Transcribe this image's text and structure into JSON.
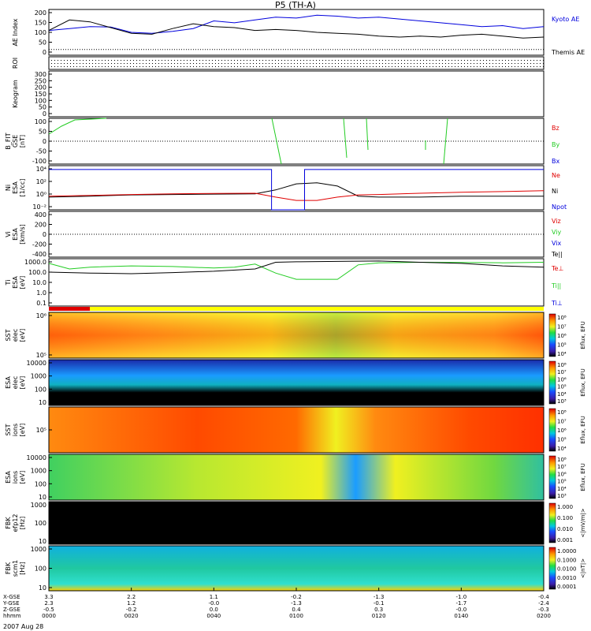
{
  "title": "P5 (TH-A)",
  "date_label": "2007 Aug 28",
  "colors": {
    "red": "#e00000",
    "green": "#22cc22",
    "blue": "#0000dd",
    "black": "#000000",
    "yellow": "#ffff00"
  },
  "panels": [
    {
      "id": "ae",
      "ylabel": [
        "AE Index"
      ],
      "yticks": [
        "200",
        "150",
        "100",
        "50",
        "0"
      ],
      "legend": [
        {
          "text": "Kyoto AE",
          "color": "#0000dd"
        },
        {
          "text": "Themis AE",
          "color": "#000000"
        }
      ]
    },
    {
      "id": "roi",
      "ylabel": [
        "ROI"
      ],
      "yticks": []
    },
    {
      "id": "keogram",
      "ylabel": [
        "Keogram"
      ],
      "yticks": [
        "300",
        "250",
        "200",
        "150",
        "100",
        "50",
        "0"
      ]
    },
    {
      "id": "bfit",
      "ylabel": [
        "B_FIT",
        "GSE",
        "[nT]"
      ],
      "yticks": [
        "100",
        "50",
        "0",
        "-50",
        "-100"
      ],
      "legend": [
        {
          "text": "Bz",
          "color": "#e00000"
        },
        {
          "text": "By",
          "color": "#22cc22"
        },
        {
          "text": "Bx",
          "color": "#0000dd"
        }
      ]
    },
    {
      "id": "ni",
      "ylabel": [
        "Ni",
        "ESA",
        "[1/cc]"
      ],
      "yticks": [
        "10⁴",
        "10²",
        "10⁰",
        "10⁻²"
      ],
      "legend": [
        {
          "text": "Ne",
          "color": "#e00000"
        },
        {
          "text": "Ni",
          "color": "#000000"
        },
        {
          "text": "Npot",
          "color": "#0000dd"
        }
      ]
    },
    {
      "id": "vi",
      "ylabel": [
        "Vi",
        "ESA",
        "[km/s]"
      ],
      "yticks": [
        "400",
        "200",
        "0",
        "-200",
        "-400"
      ],
      "legend": [
        {
          "text": "Viz",
          "color": "#e00000"
        },
        {
          "text": "Viy",
          "color": "#22cc22"
        },
        {
          "text": "Vix",
          "color": "#0000dd"
        },
        {
          "text": "Te||",
          "color": "#000000"
        }
      ]
    },
    {
      "id": "ti",
      "ylabel": [
        "Ti",
        "ESA",
        "[eV]"
      ],
      "yticks": [
        "1000.0",
        "100.0",
        "10.0",
        "1.0",
        "0.1"
      ],
      "legend": [
        {
          "text": "Te⊥",
          "color": "#e00000"
        },
        {
          "text": "Ti||",
          "color": "#22cc22"
        },
        {
          "text": "Ti⊥",
          "color": "#0000dd"
        }
      ]
    },
    {
      "id": "sst_e",
      "ylabel": [
        "SST",
        "elec",
        "[eV]"
      ],
      "yticks": [
        "10⁶",
        "10⁵"
      ],
      "cbar": [
        "10⁸",
        "10⁷",
        "10⁶",
        "10⁵",
        "10⁴"
      ],
      "cbar_label": "Eflux, EFU"
    },
    {
      "id": "esa_e",
      "ylabel": [
        "ESA",
        "elec",
        "[eV]"
      ],
      "yticks": [
        "10000",
        "1000",
        "100",
        "10"
      ],
      "cbar": [
        "10⁸",
        "10⁷",
        "10⁶",
        "10⁵",
        "10⁴",
        "10³"
      ],
      "cbar_label": "Eflux, EFU"
    },
    {
      "id": "sst_i",
      "ylabel": [
        "SST",
        "ions",
        "[eV]"
      ],
      "yticks": [
        "10⁵"
      ],
      "cbar": [
        "10⁸",
        "10⁷",
        "10⁶",
        "10⁵",
        "10⁴"
      ],
      "cbar_label": "Eflux, EFU"
    },
    {
      "id": "esa_i",
      "ylabel": [
        "ESA",
        "ions",
        "[eV]"
      ],
      "yticks": [
        "10000",
        "1000",
        "100",
        "10"
      ],
      "cbar": [
        "10⁸",
        "10⁷",
        "10⁶",
        "10⁵",
        "10⁴",
        "10³"
      ],
      "cbar_label": "Eflux, EFU"
    },
    {
      "id": "fbk1",
      "ylabel": [
        "FBK",
        "efp12",
        "[Hz]"
      ],
      "yticks": [
        "1000",
        "100",
        "10"
      ],
      "cbar": [
        "1.000",
        "0.100",
        "0.010",
        "0.001"
      ],
      "cbar_label": "<|mV/m|>"
    },
    {
      "id": "fbk2",
      "ylabel": [
        "FBK",
        "scm1",
        "[Hz]"
      ],
      "yticks": [
        "1000",
        "100",
        "10"
      ],
      "cbar": [
        "1.0000",
        "0.1000",
        "0.0100",
        "0.0010",
        "0.0001"
      ],
      "cbar_label": "<|nT|>"
    }
  ],
  "axis_rows": {
    "labels": [
      "X-GSE",
      "Y-GSE",
      "Z-GSE",
      "hhmm"
    ],
    "columns": [
      {
        "vals": [
          "3.3",
          "2.3",
          "-0.5",
          "0000"
        ]
      },
      {
        "vals": [
          "2.2",
          "1.2",
          "-0.2",
          "0020"
        ]
      },
      {
        "vals": [
          "1.1",
          "-0.0",
          "0.0",
          "0040"
        ]
      },
      {
        "vals": [
          "-0.2",
          "-1.3",
          "0.4",
          "0100"
        ]
      },
      {
        "vals": [
          "-1.3",
          "-0.1",
          "0.3",
          "0120"
        ]
      },
      {
        "vals": [
          "-1.0",
          "-1.7",
          "-0.0",
          "0140"
        ]
      },
      {
        "vals": [
          "-0.4",
          "-2.4",
          "-0.3",
          "0200"
        ]
      }
    ]
  },
  "chart_data": [
    {
      "type": "line",
      "panel": "AE Index",
      "x_unit": "minutes after 0000 UT",
      "xlim": [
        0,
        120
      ],
      "ylim": [
        -30,
        210
      ],
      "series": [
        {
          "name": "Kyoto AE",
          "color": "#0000dd",
          "x": [
            0,
            5,
            10,
            15,
            20,
            25,
            30,
            35,
            40,
            45,
            50,
            55,
            60,
            65,
            70,
            75,
            80,
            85,
            90,
            95,
            100,
            105,
            110,
            115,
            120
          ],
          "y": [
            100,
            110,
            120,
            118,
            90,
            85,
            95,
            110,
            150,
            140,
            155,
            170,
            165,
            180,
            175,
            165,
            170,
            160,
            150,
            140,
            130,
            120,
            125,
            110,
            120
          ]
        },
        {
          "name": "Themis AE",
          "color": "#000000",
          "x": [
            0,
            5,
            10,
            15,
            20,
            25,
            30,
            35,
            40,
            45,
            50,
            55,
            60,
            65,
            70,
            75,
            80,
            85,
            90,
            95,
            100,
            105,
            110,
            115,
            120
          ],
          "y": [
            100,
            155,
            145,
            115,
            85,
            80,
            110,
            135,
            120,
            115,
            100,
            105,
            100,
            90,
            85,
            80,
            70,
            65,
            70,
            65,
            75,
            80,
            70,
            60,
            65
          ]
        }
      ]
    },
    {
      "type": "line",
      "panel": "Ni",
      "x_unit": "minutes after 0000 UT",
      "ylim_log10": [
        -3,
        5
      ],
      "series": [
        {
          "name": "Ni",
          "color": "#000000",
          "x": [
            0,
            10,
            20,
            30,
            40,
            50,
            55,
            60,
            65,
            70,
            75,
            80,
            90,
            100,
            110,
            120
          ],
          "y": [
            0.2,
            0.3,
            0.5,
            0.6,
            0.7,
            0.8,
            4,
            50,
            80,
            20,
            0.3,
            0.2,
            0.2,
            0.3,
            0.3,
            0.3
          ]
        },
        {
          "name": "Ne",
          "color": "#e00000",
          "x": [
            0,
            10,
            20,
            30,
            40,
            50,
            55,
            60,
            65,
            70,
            75,
            80,
            90,
            100,
            110,
            120
          ],
          "y": [
            0.3,
            0.4,
            0.6,
            0.8,
            0.9,
            1,
            0.2,
            0.05,
            0.05,
            0.2,
            0.5,
            0.6,
            1,
            1.5,
            2,
            3
          ]
        },
        {
          "name": "Npot",
          "color": "#0000dd",
          "x": [
            0,
            1,
            54,
            54,
            62,
            62,
            120
          ],
          "y": [
            20000,
            20000,
            20000,
            0.001,
            0.001,
            20000,
            20000
          ]
        }
      ]
    },
    {
      "type": "line",
      "panel": "Ti",
      "x_unit": "minutes after 0000 UT",
      "ylim_log10": [
        -1.3,
        3.3
      ],
      "series": [
        {
          "name": "Ti||",
          "color": "#22cc22",
          "x": [
            0,
            5,
            10,
            20,
            30,
            40,
            45,
            50,
            55,
            60,
            65,
            70,
            75,
            80,
            90,
            100,
            110,
            120
          ],
          "y": [
            700,
            200,
            300,
            400,
            350,
            250,
            300,
            600,
            80,
            20,
            20,
            20,
            500,
            800,
            900,
            850,
            800,
            900
          ]
        },
        {
          "name": "Te||",
          "color": "#000000",
          "x": [
            0,
            10,
            20,
            30,
            40,
            50,
            55,
            60,
            70,
            80,
            90,
            100,
            110,
            120
          ],
          "y": [
            100,
            80,
            70,
            90,
            120,
            200,
            900,
            1000,
            1100,
            1200,
            900,
            700,
            400,
            300
          ]
        }
      ]
    }
  ]
}
